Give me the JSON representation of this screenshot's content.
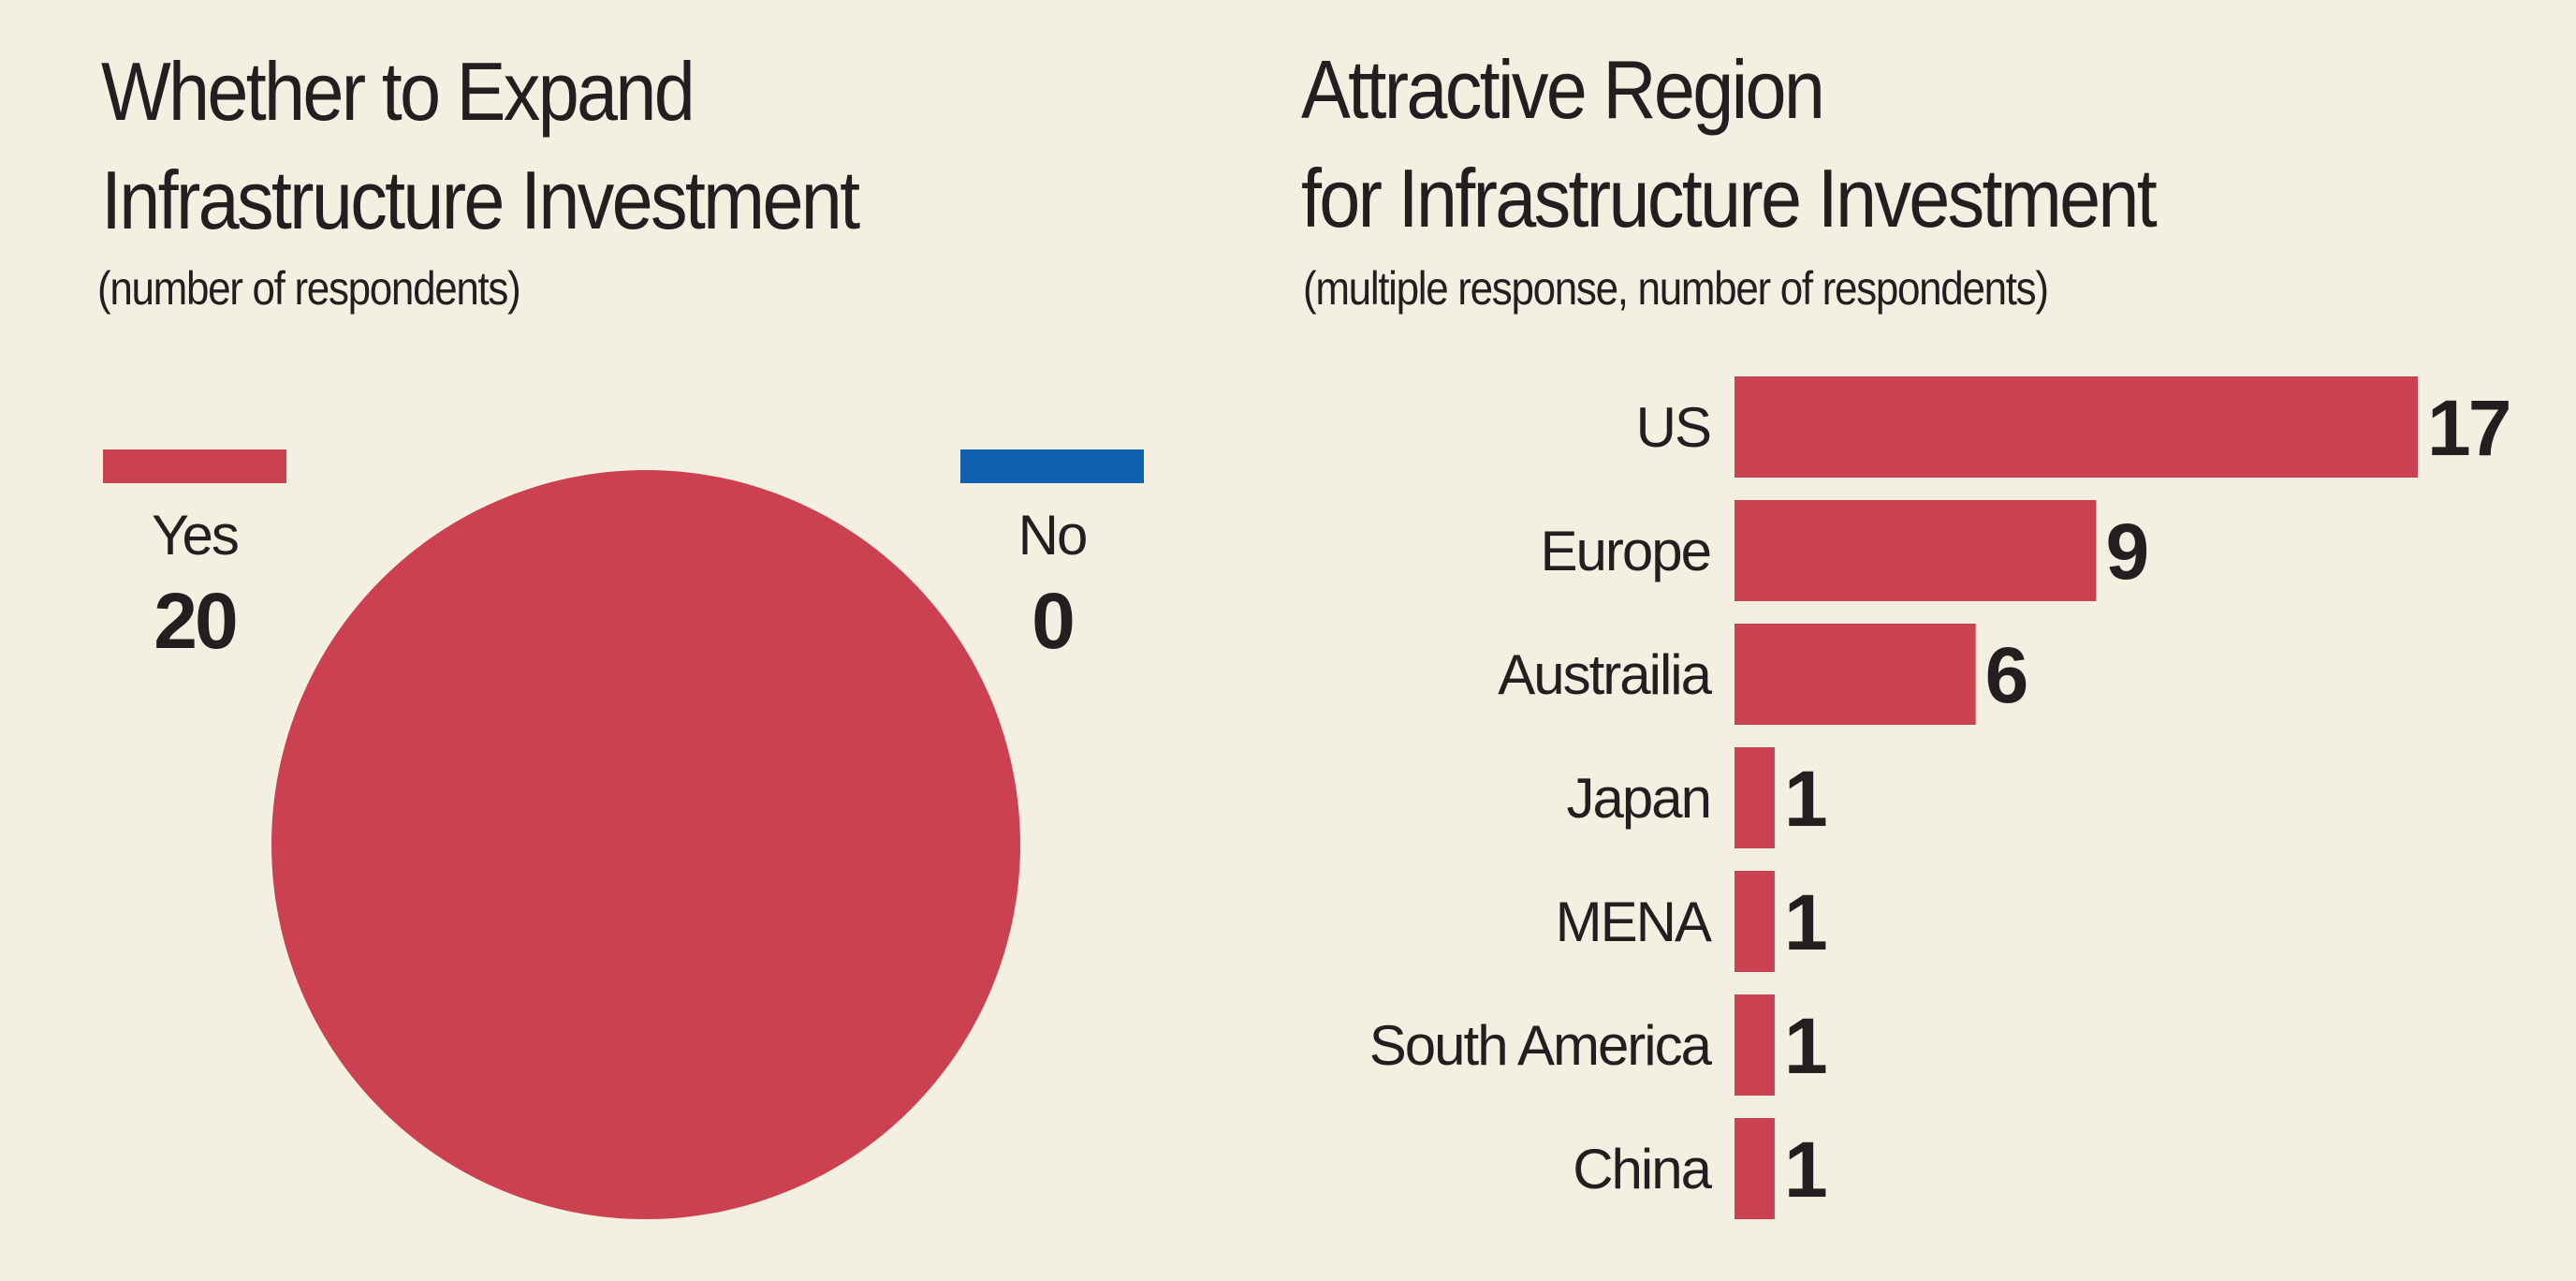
{
  "chart_data": [
    {
      "type": "pie",
      "title": "Whether to Expand Infrastructure Investment",
      "title_lines": [
        "Whether to Expand",
        "Infrastructure Investment"
      ],
      "subtitle": "(number of respondents)",
      "slices": [
        {
          "label": "Yes",
          "value": 20,
          "color": "#cc4150"
        },
        {
          "label": "No",
          "value": 0,
          "color": "#1060b0"
        }
      ],
      "legend_placement": "top"
    },
    {
      "type": "bar",
      "orientation": "horizontal",
      "title": "Attractive Region for Infrastructure Investment",
      "title_lines": [
        "Attractive Region",
        "for Infrastructure Investment"
      ],
      "subtitle": "(multiple response, number of respondents)",
      "categories": [
        "US",
        "Europe",
        "Austrailia",
        "Japan",
        "MENA",
        "South America",
        "China"
      ],
      "values": [
        17,
        9,
        6,
        1,
        1,
        1,
        1
      ],
      "color": "#cc4150",
      "grid": false,
      "xlim": [
        0,
        17
      ]
    }
  ]
}
